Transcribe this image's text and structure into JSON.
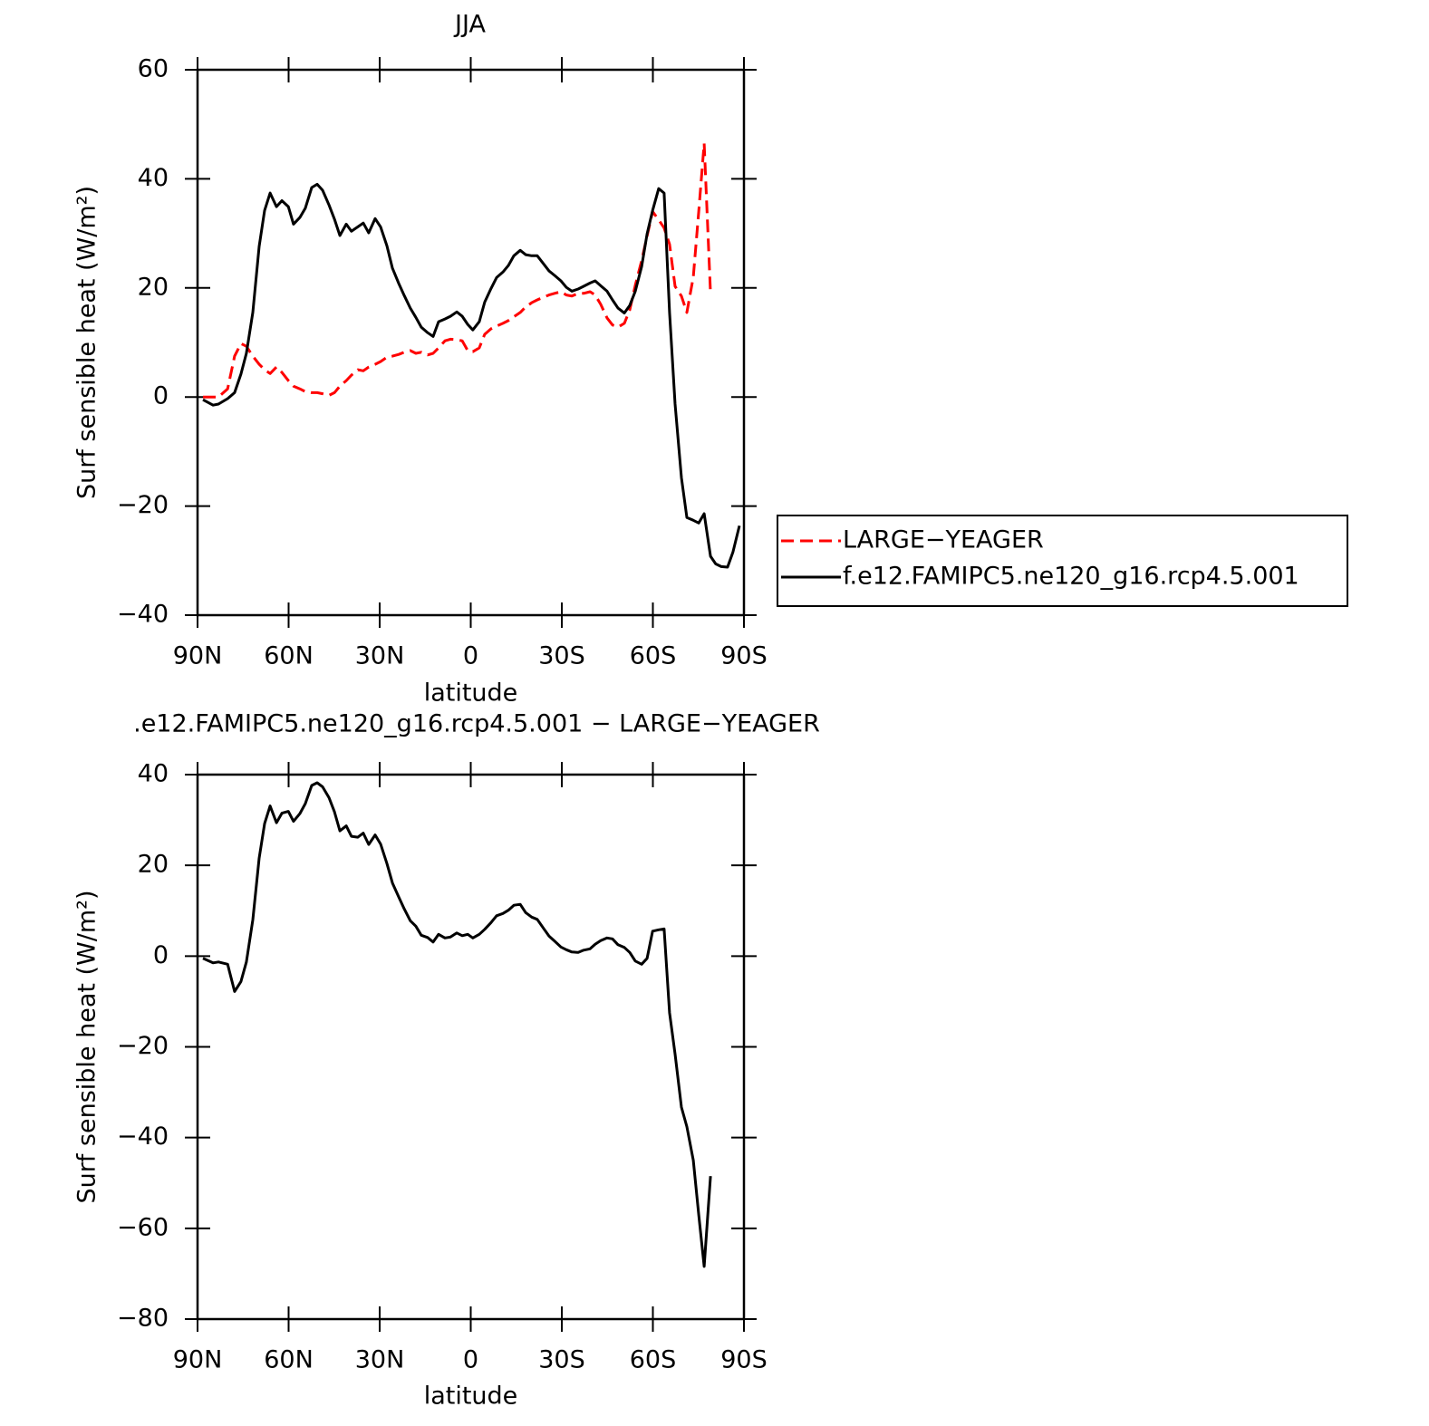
{
  "chart_data": [
    {
      "type": "line",
      "title": "JJA",
      "xlabel": "latitude",
      "ylabel": "Surf sensible heat (W/m²)",
      "x": [
        88.2,
        84.9,
        83.1,
        80.1,
        77.8,
        75.7,
        73.9,
        71.8,
        69.7,
        67.9,
        66.1,
        64,
        62.2,
        60.1,
        58.4,
        56.3,
        54.5,
        52.4,
        50.6,
        48.8,
        46.7,
        44.9,
        43.1,
        41,
        39.3,
        37.2,
        35.4,
        33.6,
        31.5,
        29.7,
        27.6,
        25.8,
        23.7,
        21.9,
        19.9,
        18.1,
        16.3,
        14.2,
        12.4,
        10.6,
        8.5,
        6.7,
        4.6,
        2.8,
        1,
        -0.7,
        -2.8,
        -4.6,
        -6.7,
        -8.5,
        -10.6,
        -12.4,
        -14.2,
        -16.3,
        -18.1,
        -20.1,
        -21.9,
        -24,
        -25.8,
        -27.6,
        -29.7,
        -31.5,
        -33.3,
        -35.4,
        -37.2,
        -39.3,
        -41,
        -42.8,
        -44.9,
        -46.7,
        -48.5,
        -50.6,
        -52.4,
        -54.2,
        -56.3,
        -58.1,
        -59.9,
        -61.9,
        -63.7,
        -65.5,
        -67.3,
        -69.4,
        -71.2,
        -73.3,
        -75.1,
        -76.9,
        -79,
        -80.7,
        -82.5,
        -84.6,
        -86.4,
        -88.5
      ],
      "xlim": [
        90,
        -90
      ],
      "xticks": [
        {
          "value": 90,
          "label": "90N"
        },
        {
          "value": 60,
          "label": "60N"
        },
        {
          "value": 30,
          "label": "30N"
        },
        0,
        {
          "value": -30,
          "label": "30S"
        },
        {
          "value": -60,
          "label": "60S"
        },
        {
          "value": -90,
          "label": "90S"
        }
      ],
      "ylim": [
        -40,
        60
      ],
      "yticks": [
        {
          "value": -40,
          "label": "−40"
        },
        {
          "value": -20,
          "label": "−20"
        },
        0,
        20,
        40,
        60
      ],
      "legend": "right",
      "series": [
        {
          "name": "LARGE−YEAGER",
          "color": "#ff0000",
          "line_style": "dashed",
          "values": [
            0,
            0,
            0,
            1.5,
            7.5,
            9.8,
            9.3,
            7.5,
            6,
            5,
            4.3,
            5.5,
            4.5,
            3,
            2,
            1.5,
            1,
            0.8,
            0.8,
            0.6,
            0.3,
            0.8,
            2,
            3,
            4,
            5,
            4.8,
            5.5,
            6,
            6.5,
            7.3,
            7.5,
            7.8,
            8.2,
            8.5,
            8,
            8.2,
            7.7,
            8,
            9,
            10.3,
            10.6,
            10.5,
            10.3,
            8.5,
            8.3,
            9,
            11.5,
            12.5,
            13,
            13.5,
            14,
            14.7,
            15.5,
            16.5,
            17.3,
            17.8,
            18.3,
            18.7,
            19,
            19.3,
            18.7,
            18.5,
            19,
            19,
            19.3,
            18.7,
            17,
            14.5,
            13.2,
            12.8,
            13.5,
            16,
            20.5,
            25,
            29.5,
            34,
            32.5,
            31,
            28,
            20.3,
            18.5,
            15.5,
            22,
            34,
            46.5,
            19,
            null,
            null,
            null,
            null,
            null
          ]
        },
        {
          "name": "f.e12.FAMIPC5.ne120_g16.rcp4.5.001",
          "color": "#000000",
          "line_style": "solid",
          "values": [
            -0.5,
            -1.5,
            -1.3,
            -0.3,
            0.8,
            4.2,
            8,
            15.5,
            27.6,
            34.2,
            37.4,
            34.9,
            36,
            34.9,
            31.7,
            32.9,
            34.6,
            38.4,
            39,
            37.9,
            35.2,
            32.6,
            29.6,
            31.7,
            30.4,
            31.2,
            31.9,
            30.1,
            32.7,
            31.2,
            27.7,
            23.6,
            20.8,
            18.6,
            16.3,
            14.6,
            12.8,
            11.8,
            11.1,
            13.8,
            14.3,
            14.8,
            15.6,
            14.8,
            13.3,
            12.3,
            13.8,
            17.4,
            19.9,
            21.9,
            22.9,
            24.1,
            25.9,
            26.9,
            26.1,
            25.9,
            25.9,
            24.4,
            23.1,
            22.3,
            21.3,
            20.1,
            19.4,
            19.8,
            20.3,
            20.9,
            21.3,
            20.4,
            19.4,
            17.8,
            16.3,
            15.4,
            16.8,
            19.4,
            23.9,
            29.9,
            34.2,
            38.2,
            37.4,
            15.5,
            -1.3,
            -14.8,
            -22.1,
            -22.6,
            -23.1,
            -21.4,
            -29.2,
            -30.6,
            -31.1,
            -31.2,
            -28.4,
            -23.6
          ]
        }
      ]
    },
    {
      "type": "line",
      "title": ".e12.FAMIPC5.ne120_g16.rcp4.5.001 − LARGE−YEAGER",
      "xlabel": "latitude",
      "ylabel": "Surf sensible heat (W/m²)",
      "x": [
        88.2,
        84.9,
        83.1,
        80.1,
        77.8,
        75.7,
        73.9,
        71.8,
        69.7,
        67.9,
        66.1,
        64,
        62.2,
        60.1,
        58.4,
        56.3,
        54.5,
        52.4,
        50.6,
        48.8,
        46.7,
        44.9,
        43.1,
        41,
        39.3,
        37.2,
        35.4,
        33.6,
        31.5,
        29.7,
        27.6,
        25.8,
        23.7,
        21.9,
        19.9,
        18.1,
        16.3,
        14.2,
        12.4,
        10.6,
        8.5,
        6.7,
        4.6,
        2.8,
        1,
        -0.7,
        -2.8,
        -4.6,
        -6.7,
        -8.5,
        -10.6,
        -12.4,
        -14.2,
        -16.3,
        -18.1,
        -20.1,
        -21.9,
        -24,
        -25.8,
        -27.6,
        -29.7,
        -31.5,
        -33.3,
        -35.4,
        -37.2,
        -39.3,
        -41,
        -42.8,
        -44.9,
        -46.7,
        -48.5,
        -50.6,
        -52.4,
        -54.2,
        -56.3,
        -58.1,
        -59.9,
        -61.9,
        -63.7,
        -65.5,
        -67.3,
        -69.4,
        -71.2,
        -73.3,
        -75.1,
        -76.9,
        -79
      ],
      "xlim": [
        90,
        -90
      ],
      "xticks": [
        {
          "value": 90,
          "label": "90N"
        },
        {
          "value": 60,
          "label": "60N"
        },
        {
          "value": 30,
          "label": "30N"
        },
        0,
        {
          "value": -30,
          "label": "30S"
        },
        {
          "value": -60,
          "label": "60S"
        },
        {
          "value": -90,
          "label": "90S"
        }
      ],
      "ylim": [
        -80,
        40
      ],
      "yticks": [
        {
          "value": -80,
          "label": "−80"
        },
        {
          "value": -60,
          "label": "−60"
        },
        {
          "value": -40,
          "label": "−40"
        },
        {
          "value": -20,
          "label": "−20"
        },
        0,
        20,
        40
      ],
      "series": [
        {
          "color": "#000000",
          "line_style": "solid",
          "values": [
            -0.5,
            -1.5,
            -1.3,
            -1.8,
            -7.8,
            -5.6,
            -1.3,
            8,
            21.6,
            29.2,
            33.1,
            29.4,
            31.5,
            31.9,
            29.7,
            31.4,
            33.6,
            37.6,
            38.2,
            37.3,
            34.9,
            31.8,
            27.6,
            28.7,
            26.4,
            26.2,
            27.1,
            24.6,
            26.7,
            24.7,
            20.4,
            16.1,
            13,
            10.4,
            7.8,
            6.6,
            4.6,
            4.1,
            3.1,
            4.8,
            4,
            4.2,
            5.1,
            4.5,
            4.8,
            4,
            4.8,
            5.9,
            7.4,
            8.9,
            9.4,
            10.1,
            11.2,
            11.4,
            9.6,
            8.6,
            8.1,
            6.1,
            4.4,
            3.3,
            2,
            1.4,
            0.9,
            0.8,
            1.3,
            1.6,
            2.6,
            3.4,
            4,
            3.8,
            2.5,
            1.9,
            0.8,
            -1.1,
            -1.8,
            -0.5,
            5.5,
            5.8,
            6,
            -12.5,
            -21.6,
            -33.3,
            -37.6,
            -45,
            -57,
            -68.4,
            -48.5
          ]
        }
      ]
    }
  ]
}
